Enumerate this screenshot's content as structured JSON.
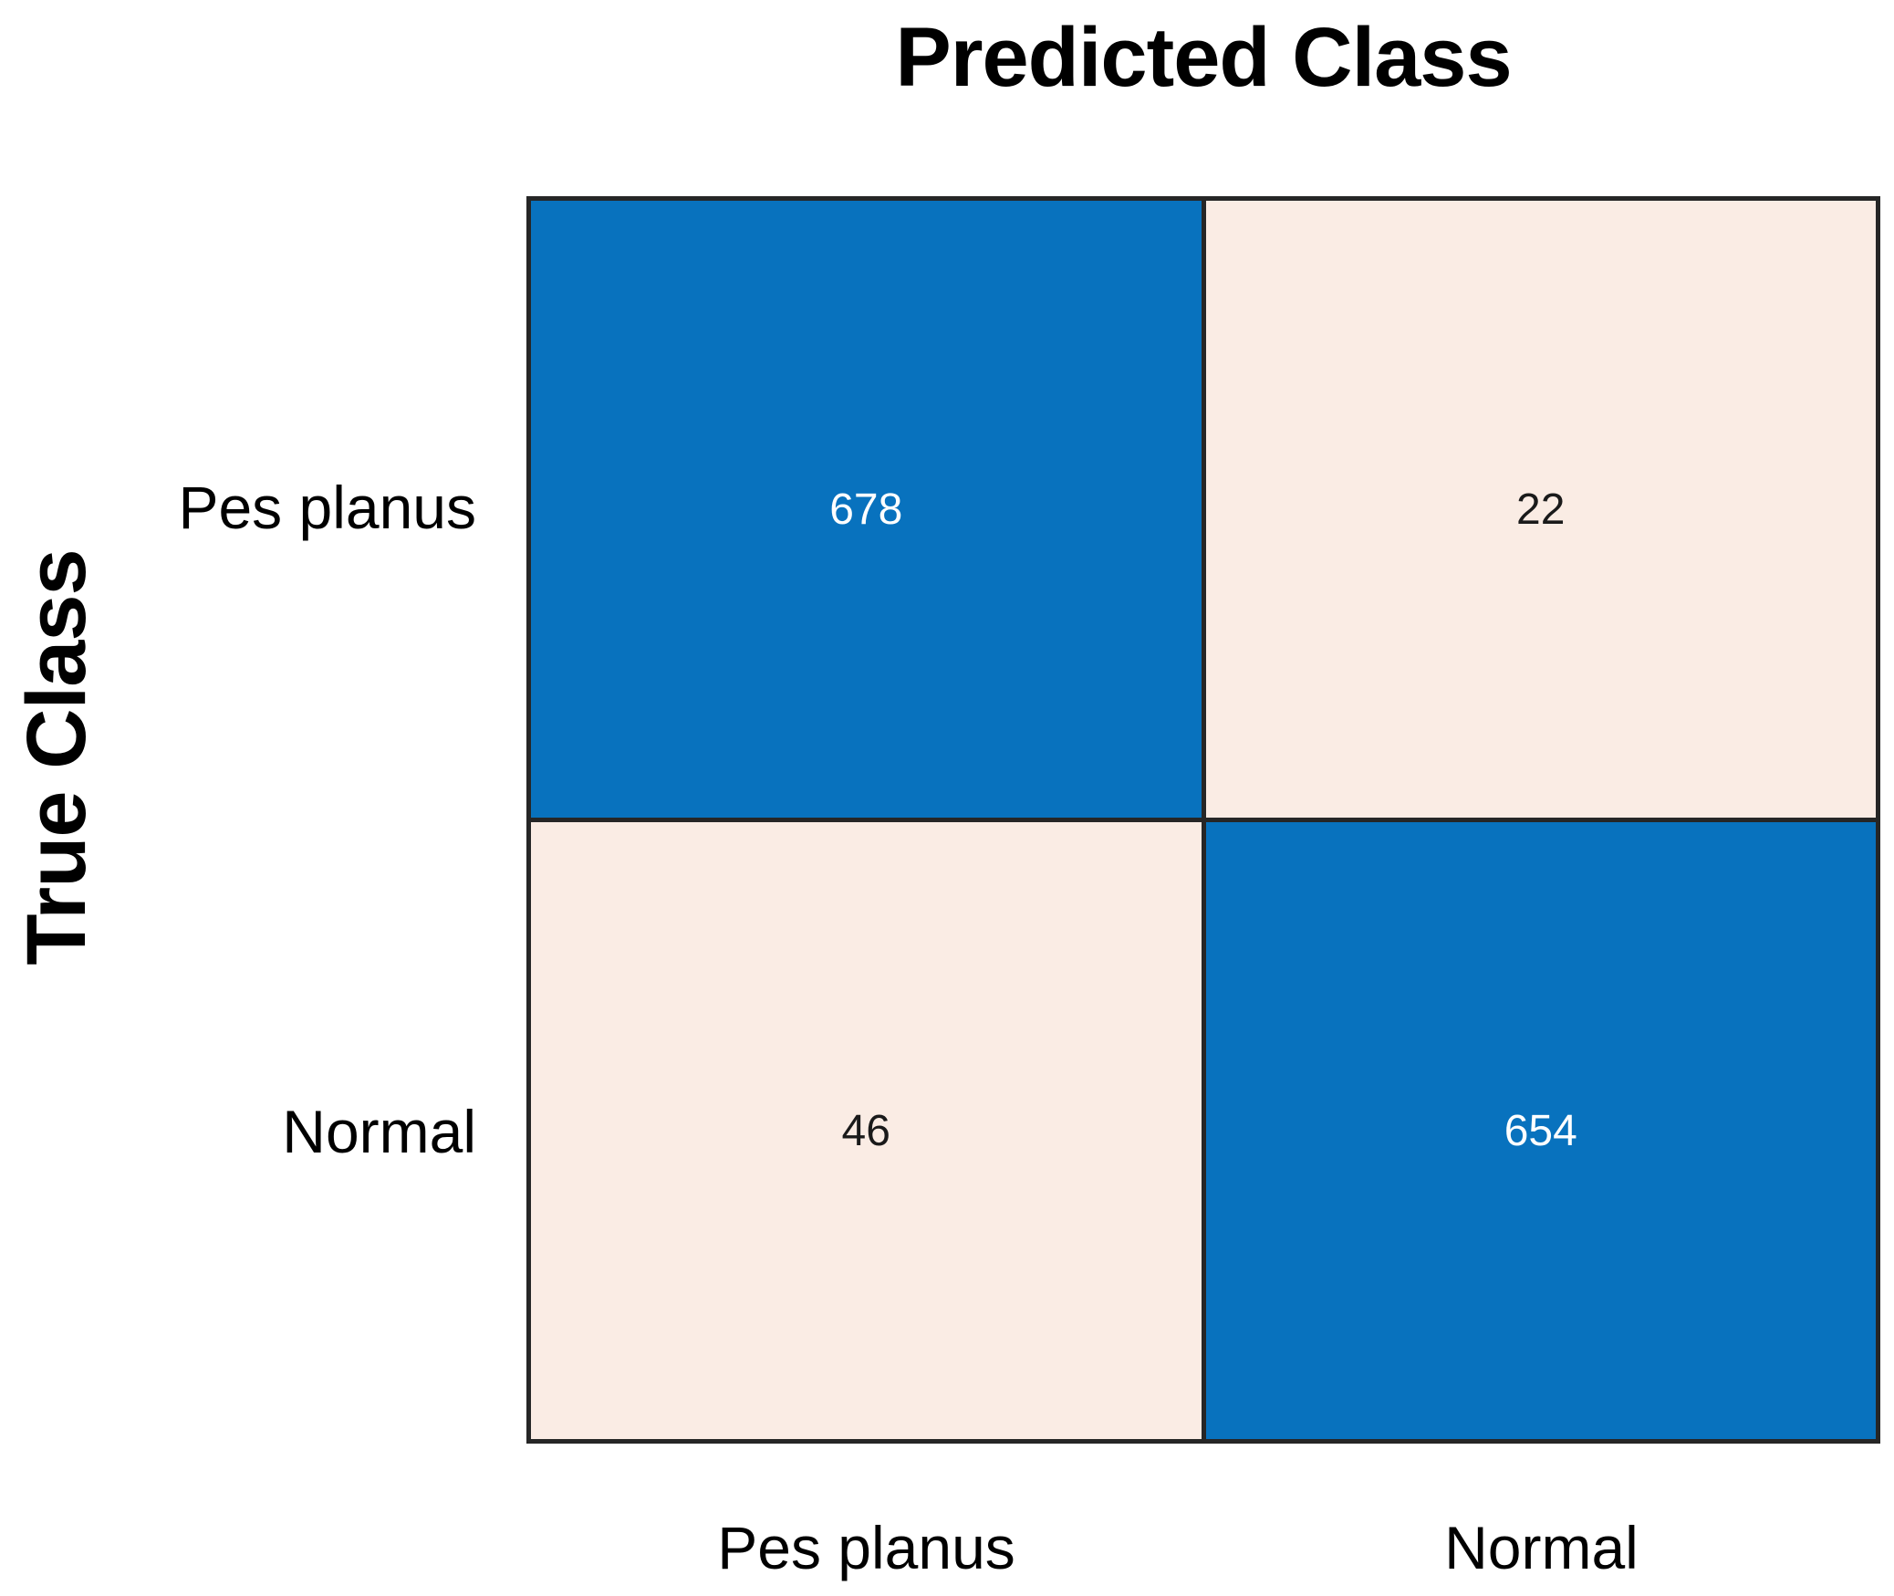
{
  "figure_title": "Predicted Class",
  "y_axis_title": "True Class",
  "axes": {
    "row_labels": [
      "Pes planus",
      "Normal"
    ],
    "col_labels": [
      "Pes planus",
      "Normal"
    ]
  },
  "cells": {
    "r0c0": "678",
    "r0c1": "22",
    "r1c0": "46",
    "r1c1": "654"
  },
  "colors": {
    "diagonal_fill": "#0872BE",
    "off_diagonal_fill": "#FAECE4",
    "grid_line": "#262626",
    "value_on_blue": "#FFFFFF",
    "value_on_light": "#1A1A1A",
    "label_text": "#000000",
    "background": "#FFFFFF"
  },
  "chart_data": {
    "type": "heatmap",
    "subtype": "confusion_matrix",
    "title": "Predicted Class",
    "xlabel": "Predicted Class",
    "ylabel": "True Class",
    "x_tick_labels": [
      "Pes planus",
      "Normal"
    ],
    "y_tick_labels": [
      "Pes planus",
      "Normal"
    ],
    "series": [
      {
        "name": "Pes planus",
        "values": [
          678,
          22
        ]
      },
      {
        "name": "Normal",
        "values": [
          46,
          654
        ]
      }
    ],
    "value_range": [
      0,
      678
    ],
    "legend": false,
    "grid": true,
    "notes": "Rows are true class, columns are predicted class. Diagonal cells (678, 654) are filled dark blue with white text; off-diagonal cells (22, 46) are pale peach with dark text."
  }
}
